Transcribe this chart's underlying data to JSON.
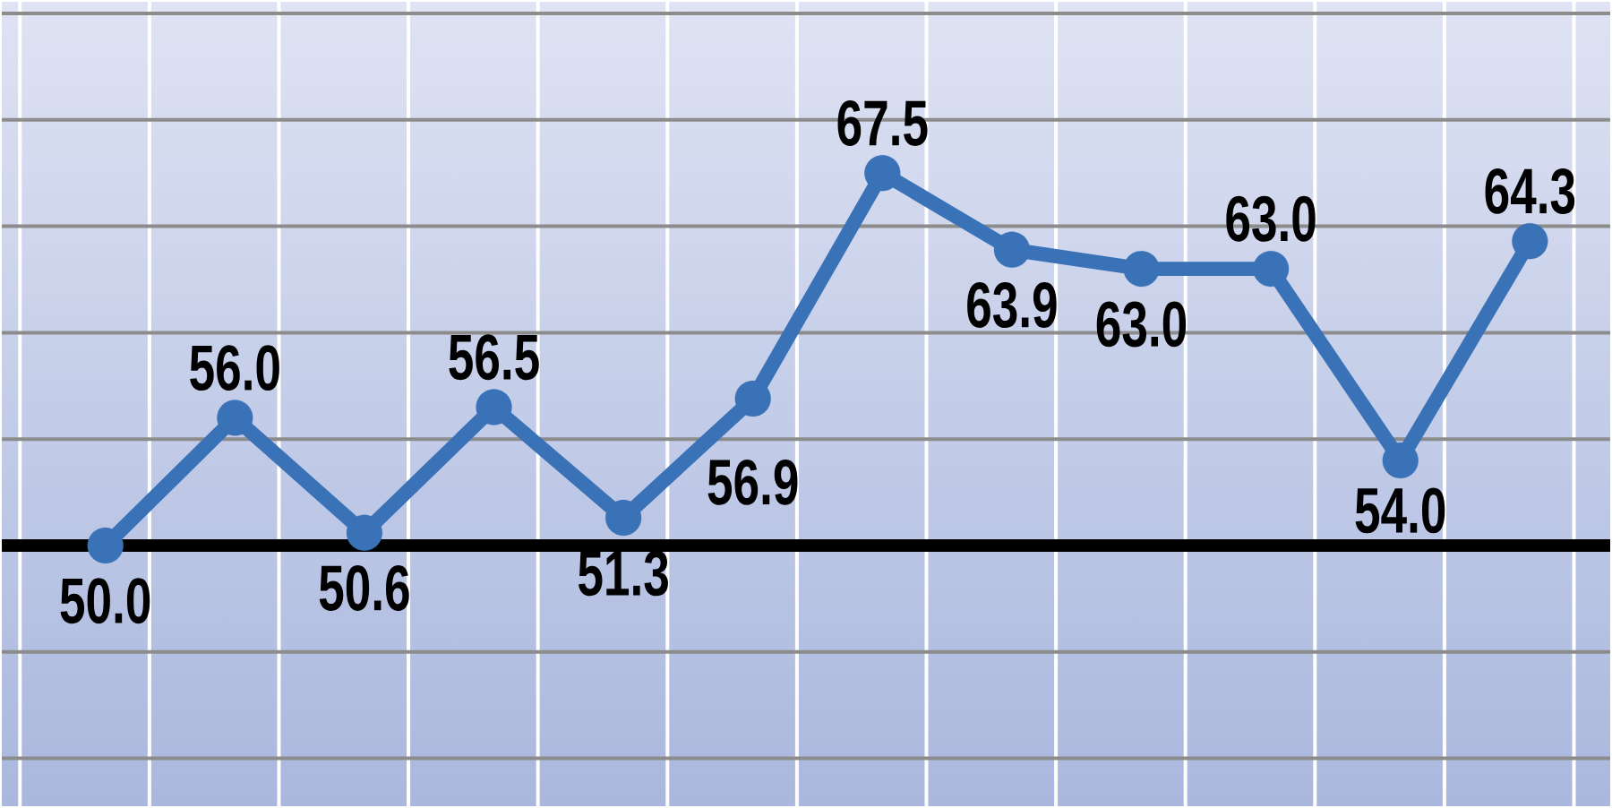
{
  "chart_data": {
    "type": "line",
    "categories": [
      null,
      null,
      null,
      null,
      null,
      null,
      null,
      null,
      null,
      null,
      null,
      null
    ],
    "values": [
      50.0,
      56.0,
      50.6,
      56.5,
      51.3,
      56.9,
      67.5,
      63.9,
      63.0,
      63.0,
      54.0,
      64.3
    ],
    "value_labels": [
      "50.0",
      "56.0",
      "50.6",
      "56.5",
      "51.3",
      "56.9",
      "67.5",
      "63.9",
      "63.0",
      "63.0",
      "54.0",
      "64.3"
    ],
    "color": "#3a72b8",
    "marker": "circle",
    "grid": true,
    "tick_labels": false,
    "ref_lines": [
      {
        "axis": "y",
        "value": 50,
        "color": "#000000"
      }
    ]
  }
}
